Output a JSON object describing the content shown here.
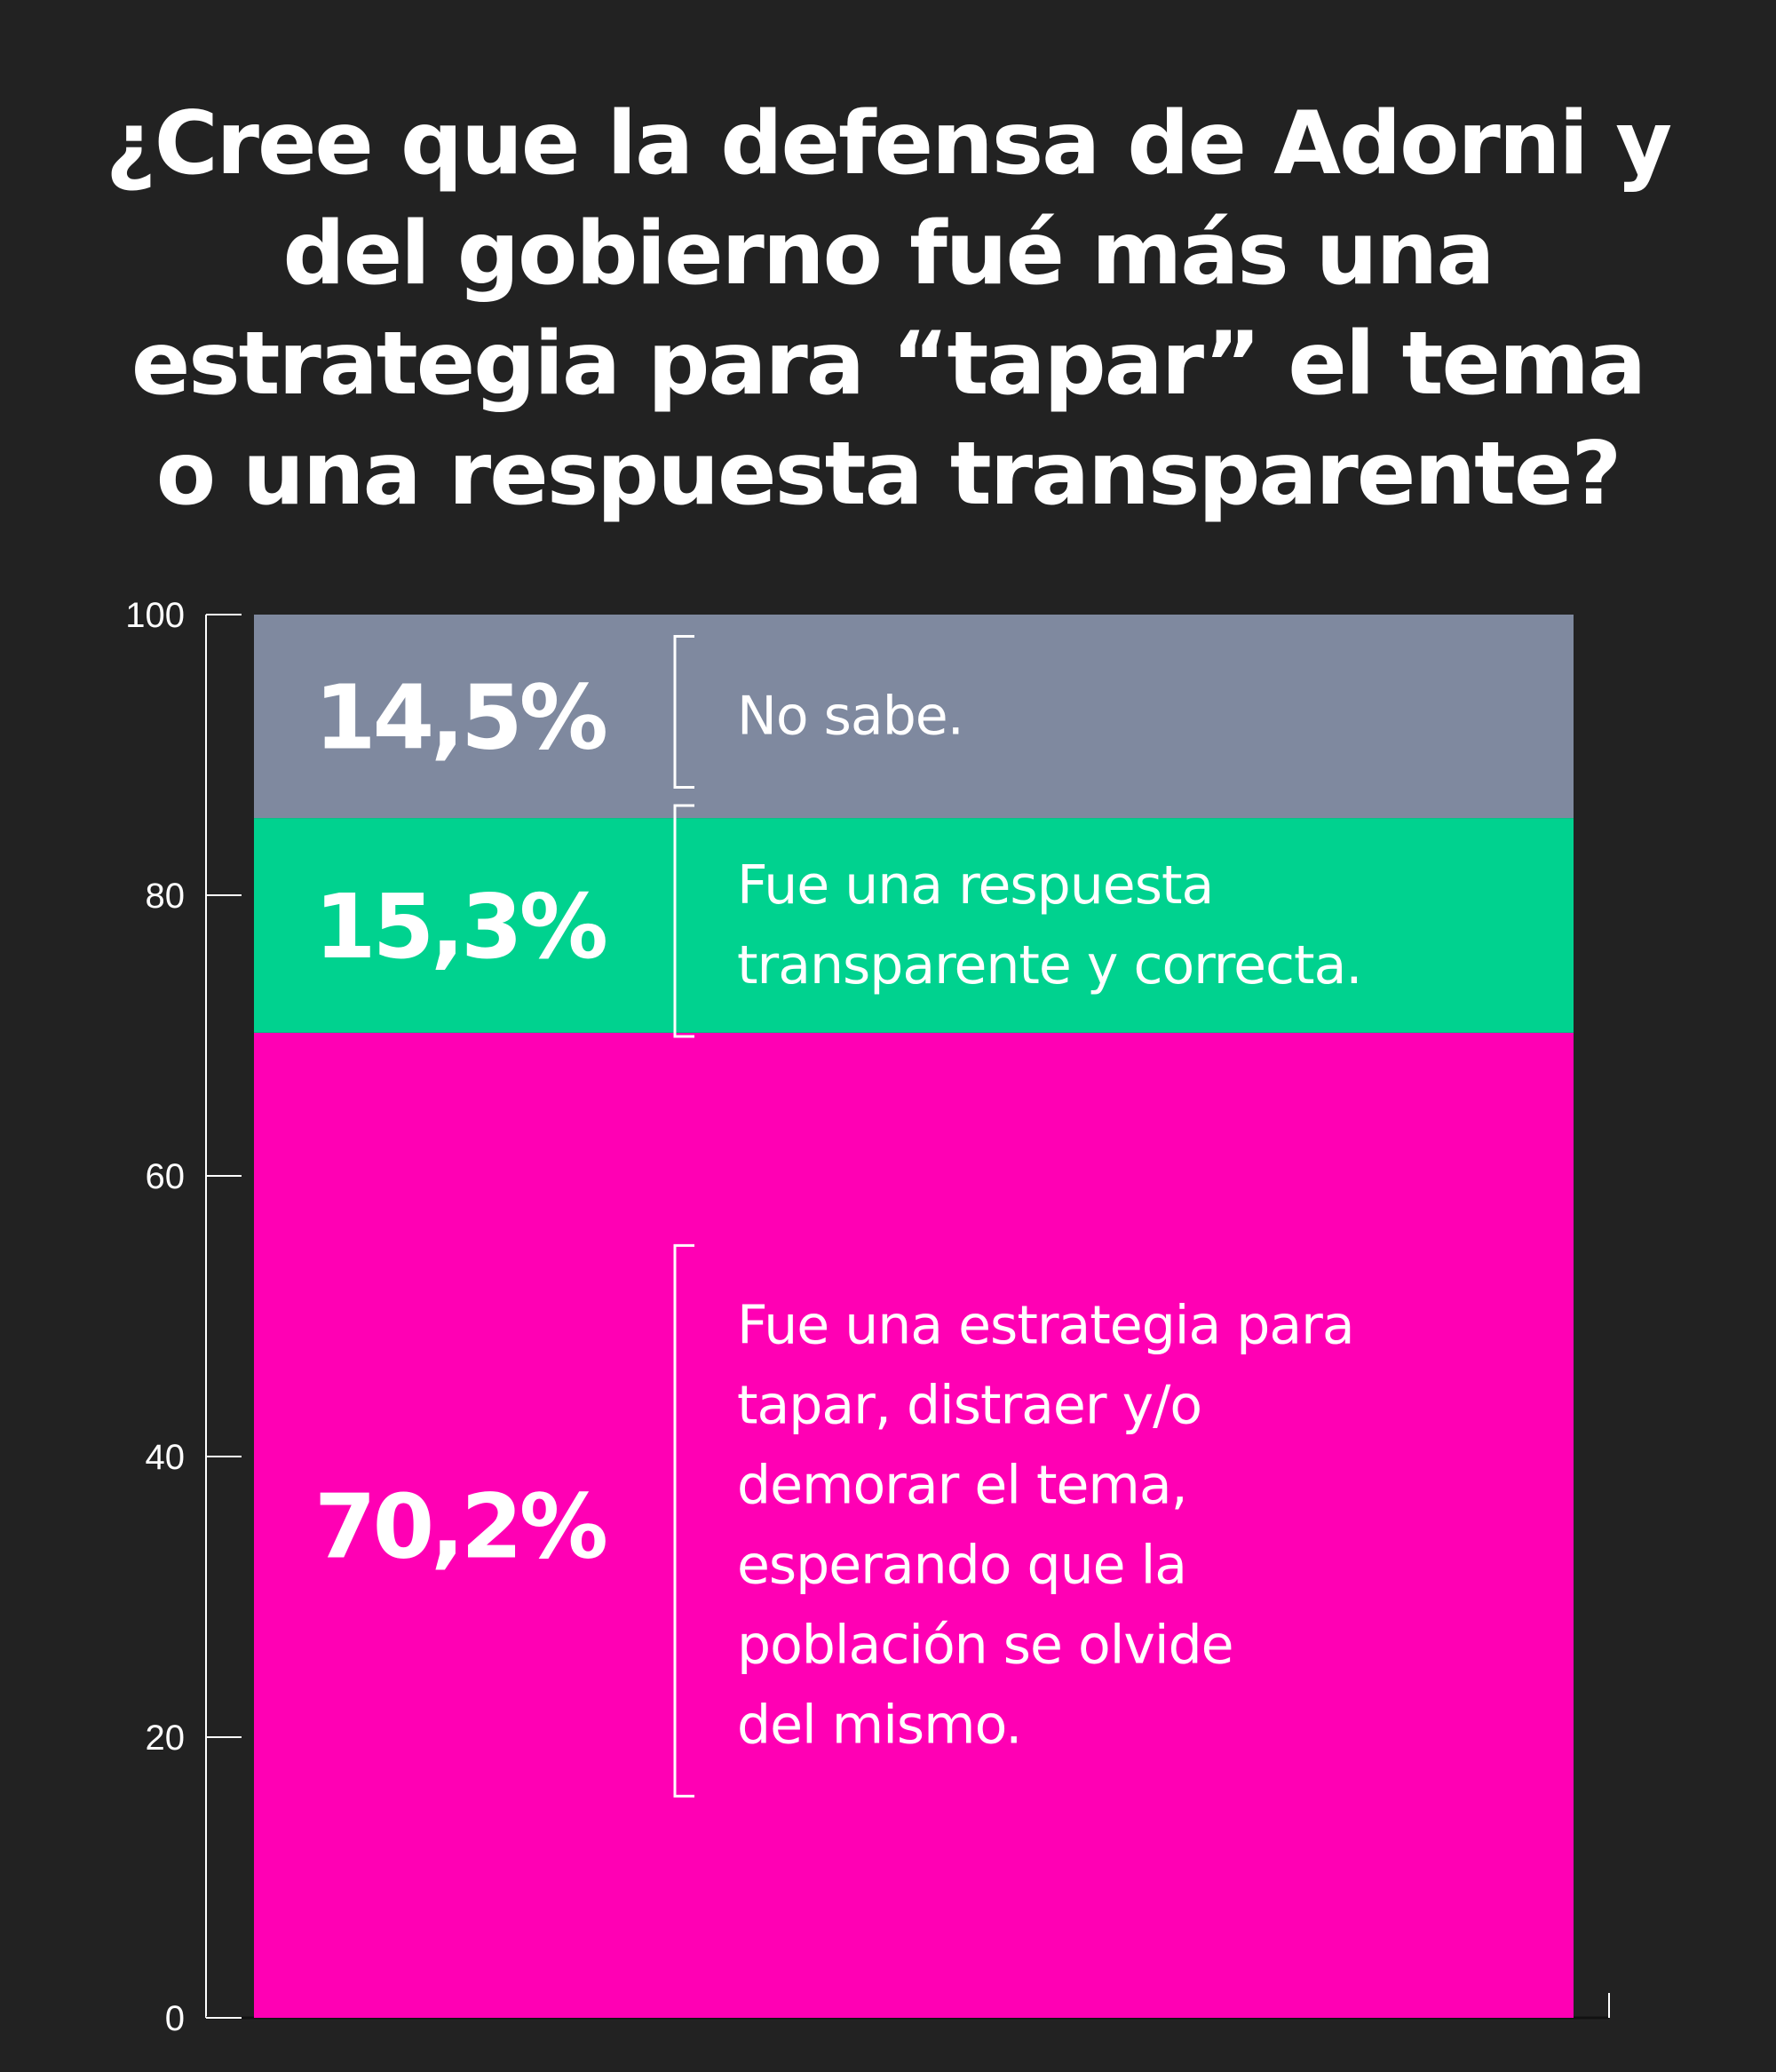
{
  "chart_data": {
    "type": "bar",
    "stacked": true,
    "title": "¿Cree que la defensa de Adorni y del gobierno fué más una estrategia para “tapar” el tema o una respuesta transparente?",
    "ylim": [
      0,
      100
    ],
    "yticks": [
      "0",
      "20",
      "40",
      "60",
      "80",
      "100"
    ],
    "series": [
      {
        "name": "Fue una estrategia para tapar, distraer y/o demorar el tema, esperando que la población se olvide del mismo.",
        "lines": [
          "Fue una estrategia para",
          "tapar, distraer y/o",
          "demorar el tema,",
          "esperando que la",
          "población se olvide",
          "del mismo."
        ],
        "value": 70.2,
        "label": "70,2%",
        "color": "#ff00b4"
      },
      {
        "name": "Fue una respuesta transparente y correcta.",
        "lines": [
          "Fue una respuesta",
          "transparente y correcta."
        ],
        "value": 15.3,
        "label": "15,3%",
        "color": "#00d28f"
      },
      {
        "name": "No sabe.",
        "lines": [
          "No sabe."
        ],
        "value": 14.5,
        "label": "14,5%",
        "color": "#7f899f"
      }
    ],
    "grid": false,
    "legend": "inline"
  }
}
